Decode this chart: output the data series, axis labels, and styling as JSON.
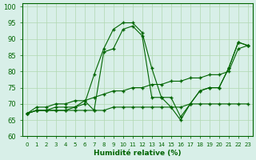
{
  "xlabel": "Humidité relative (%)",
  "background_color": "#d8efe8",
  "grid_color": "#b0d8b0",
  "line_color": "#006400",
  "xlim": [
    -0.5,
    23.5
  ],
  "ylim": [
    60,
    101
  ],
  "xticks": [
    0,
    1,
    2,
    3,
    4,
    5,
    6,
    7,
    8,
    9,
    10,
    11,
    12,
    13,
    14,
    15,
    16,
    17,
    18,
    19,
    20,
    21,
    22,
    23
  ],
  "yticks": [
    60,
    65,
    70,
    75,
    80,
    85,
    90,
    95,
    100
  ],
  "line1_x": [
    0,
    1,
    2,
    3,
    4,
    5,
    6,
    7,
    8,
    9,
    10,
    11,
    12,
    13,
    14,
    15,
    16,
    17,
    18,
    19,
    20,
    21,
    22,
    23
  ],
  "line1_y": [
    67,
    68,
    68,
    68,
    68,
    68,
    68,
    68,
    68,
    69,
    69,
    69,
    69,
    69,
    69,
    69,
    69,
    70,
    70,
    70,
    70,
    70,
    70,
    70
  ],
  "line2_x": [
    0,
    1,
    2,
    3,
    4,
    5,
    6,
    7,
    8,
    9,
    10,
    11,
    12,
    13,
    14,
    15,
    16,
    17,
    18,
    19,
    20,
    21,
    22,
    23
  ],
  "line2_y": [
    67,
    68,
    68,
    68,
    68,
    69,
    70,
    79,
    87,
    93,
    95,
    95,
    92,
    81,
    72,
    72,
    66,
    70,
    74,
    75,
    75,
    81,
    89,
    88
  ],
  "line3_x": [
    0,
    1,
    2,
    3,
    4,
    5,
    6,
    7,
    8,
    9,
    10,
    11,
    12,
    13,
    14,
    15,
    16,
    17,
    18,
    19,
    20,
    21,
    22,
    23
  ],
  "line3_y": [
    67,
    68,
    68,
    69,
    69,
    69,
    71,
    68,
    86,
    87,
    93,
    94,
    91,
    72,
    72,
    69,
    65,
    70,
    74,
    75,
    75,
    81,
    89,
    88
  ],
  "line4_x": [
    0,
    1,
    2,
    3,
    4,
    5,
    6,
    7,
    8,
    9,
    10,
    11,
    12,
    13,
    14,
    15,
    16,
    17,
    18,
    19,
    20,
    21,
    22,
    23
  ],
  "line4_y": [
    67,
    69,
    69,
    70,
    70,
    71,
    71,
    72,
    73,
    74,
    74,
    75,
    75,
    76,
    76,
    77,
    77,
    78,
    78,
    79,
    79,
    80,
    87,
    88
  ]
}
